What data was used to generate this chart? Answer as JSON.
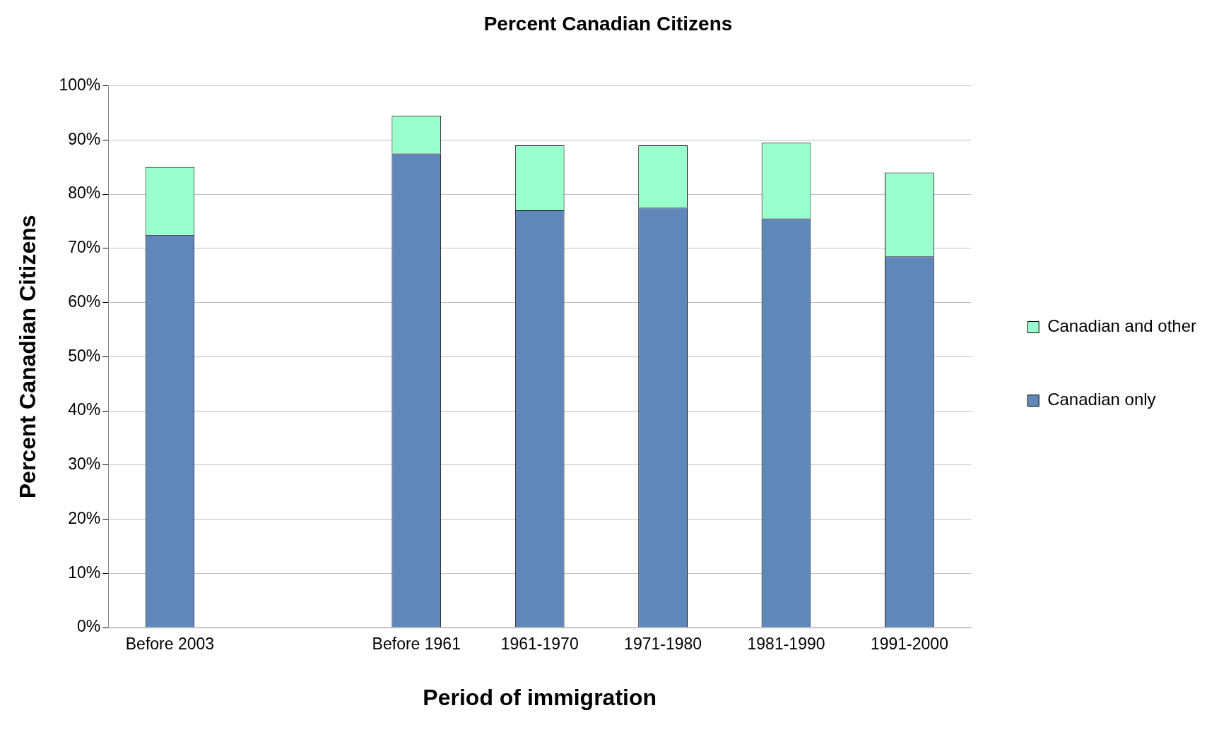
{
  "chart_data": {
    "type": "bar",
    "title": "Percent Canadian Citizens",
    "xlabel": "Period of immigration",
    "ylabel": "Percent Canadian Citizens",
    "categories": [
      "Before 2003",
      null,
      "Before 1961",
      "1961-1970",
      "1971-1980",
      "1981-1990",
      "1991-2000"
    ],
    "stacked": true,
    "series": [
      {
        "name": "Canadian only",
        "color": "#5f87ba",
        "values": [
          72.5,
          null,
          87.5,
          77,
          77.5,
          75.5,
          68.5
        ]
      },
      {
        "name": "Canadian and other",
        "color": "#99ffcc",
        "values": [
          12.5,
          null,
          7,
          12,
          11.5,
          14,
          15.5
        ]
      }
    ],
    "ylim": [
      0,
      100
    ],
    "yticks": [
      {
        "value": 0,
        "label": "0%"
      },
      {
        "value": 10,
        "label": "10%"
      },
      {
        "value": 20,
        "label": "20%"
      },
      {
        "value": 30,
        "label": "30%"
      },
      {
        "value": 40,
        "label": "40%"
      },
      {
        "value": 50,
        "label": "50%"
      },
      {
        "value": 60,
        "label": "60%"
      },
      {
        "value": 70,
        "label": "70%"
      },
      {
        "value": 80,
        "label": "80%"
      },
      {
        "value": 90,
        "label": "90%"
      },
      {
        "value": 100,
        "label": "100%"
      }
    ],
    "grid": "y",
    "legend": "right"
  }
}
